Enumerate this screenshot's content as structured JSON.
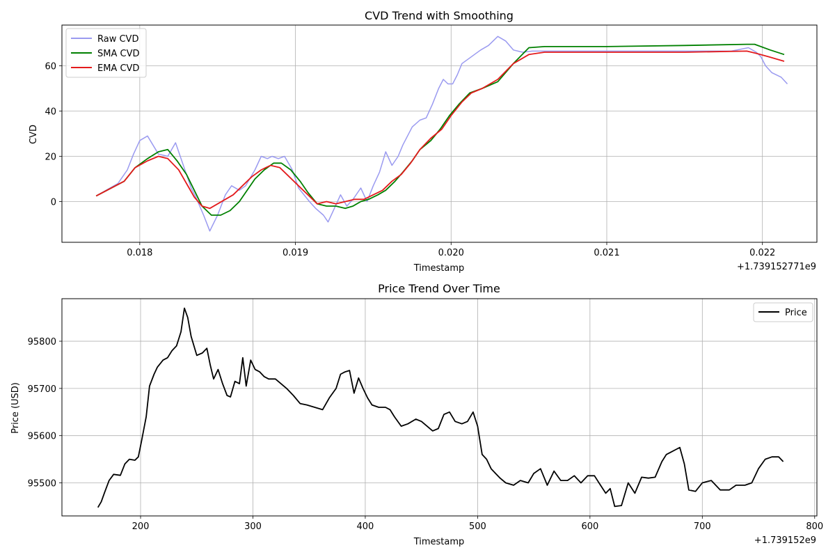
{
  "chart_data": [
    {
      "type": "line",
      "title": "CVD Trend with Smoothing",
      "xlabel": "Timestamp",
      "ylabel": "CVD",
      "x_offset_label": "+1.739152771e9",
      "xlim": [
        0.0175,
        0.02235
      ],
      "ylim": [
        -18,
        78
      ],
      "xticks": [
        0.018,
        0.019,
        0.02,
        0.021,
        0.022
      ],
      "xtick_labels": [
        "0.018",
        "0.019",
        "0.020",
        "0.021",
        "0.022"
      ],
      "yticks": [
        0,
        20,
        40,
        60
      ],
      "ytick_labels": [
        "0",
        "20",
        "40",
        "60"
      ],
      "grid": true,
      "legend": "top-left",
      "series": [
        {
          "name": "Raw CVD",
          "color": "#9a9af0",
          "x": [
            0.01772,
            0.01786,
            0.01792,
            0.01796,
            0.018,
            0.01805,
            0.01812,
            0.01818,
            0.01823,
            0.01828,
            0.01833,
            0.01836,
            0.01841,
            0.01845,
            0.0185,
            0.01855,
            0.01859,
            0.01864,
            0.01868,
            0.01874,
            0.01878,
            0.01882,
            0.01885,
            0.01889,
            0.01893,
            0.01898,
            0.01902,
            0.01909,
            0.01913,
            0.01918,
            0.01921,
            0.01925,
            0.01929,
            0.01933,
            0.01937,
            0.01942,
            0.01946,
            0.0195,
            0.01954,
            0.01958,
            0.01962,
            0.01966,
            0.01969,
            0.01975,
            0.0198,
            0.01984,
            0.01988,
            0.01992,
            0.01995,
            0.01998,
            0.02001,
            0.02004,
            0.02007,
            0.02011,
            0.02015,
            0.02019,
            0.02024,
            0.0203,
            0.02035,
            0.0204,
            0.02046,
            0.02052,
            0.0206,
            0.0208,
            0.021,
            0.0212,
            0.0215,
            0.0218,
            0.02191,
            0.02196,
            0.02199,
            0.02202,
            0.02206,
            0.02212,
            0.02216
          ],
          "y": [
            2.5,
            8,
            14,
            21,
            27,
            29,
            21,
            20,
            26,
            16,
            6,
            2,
            -6,
            -13,
            -6,
            3,
            7,
            5,
            7,
            14,
            20,
            19,
            20,
            19,
            20,
            14,
            6,
            0,
            -3,
            -6,
            -9,
            -3,
            3,
            -2,
            1,
            6,
            0,
            7,
            13,
            22,
            16,
            20,
            25,
            33,
            36,
            37,
            43,
            50,
            54,
            52,
            52,
            56,
            61,
            63,
            65,
            67,
            69,
            73,
            71,
            67,
            66,
            66.5,
            66.5,
            66.5,
            66.5,
            66.5,
            66.5,
            66.5,
            68,
            66,
            64,
            60,
            57,
            55,
            52
          ]
        },
        {
          "name": "SMA CVD",
          "color": "#008000",
          "x": [
            0.01772,
            0.0179,
            0.01797,
            0.01805,
            0.01812,
            0.01818,
            0.01824,
            0.0183,
            0.01835,
            0.0184,
            0.01846,
            0.01852,
            0.01858,
            0.01864,
            0.01869,
            0.01874,
            0.0188,
            0.01886,
            0.01891,
            0.01897,
            0.01903,
            0.01908,
            0.01914,
            0.0192,
            0.01926,
            0.01932,
            0.01937,
            0.01942,
            0.01947,
            0.01953,
            0.01958,
            0.01964,
            0.01969,
            0.01975,
            0.0198,
            0.01987,
            0.01993,
            0.01999,
            0.02005,
            0.02012,
            0.0202,
            0.0203,
            0.0204,
            0.0205,
            0.0206,
            0.0208,
            0.021,
            0.0215,
            0.0219,
            0.02195,
            0.02205,
            0.02214
          ],
          "y": [
            2.5,
            9,
            15,
            19,
            22,
            23,
            18,
            12,
            5,
            -2,
            -6,
            -6,
            -4,
            0,
            5,
            10,
            14,
            17,
            17,
            14,
            9,
            4,
            -1,
            -2,
            -2,
            -3,
            -2,
            0,
            1,
            3,
            5,
            9,
            13,
            18,
            23,
            27,
            32,
            38,
            43,
            48,
            50,
            53,
            61,
            68,
            68.5,
            68.5,
            68.5,
            69,
            69.5,
            69.5,
            67,
            65
          ]
        },
        {
          "name": "EMA CVD",
          "color": "#e31a1c",
          "x": [
            0.01772,
            0.0179,
            0.01797,
            0.01805,
            0.01812,
            0.01818,
            0.01825,
            0.0183,
            0.01835,
            0.0184,
            0.01845,
            0.0185,
            0.01855,
            0.0186,
            0.01866,
            0.01872,
            0.01878,
            0.01884,
            0.0189,
            0.01896,
            0.01902,
            0.01908,
            0.01914,
            0.0192,
            0.01926,
            0.01932,
            0.01938,
            0.01944,
            0.0195,
            0.01956,
            0.01962,
            0.01968,
            0.01974,
            0.0198,
            0.01987,
            0.01994,
            0.02,
            0.02007,
            0.02013,
            0.0202,
            0.0203,
            0.0204,
            0.0205,
            0.0206,
            0.021,
            0.0215,
            0.0219,
            0.02196,
            0.02204,
            0.02214
          ],
          "y": [
            2.5,
            9,
            15,
            18,
            20,
            19,
            14,
            8,
            2,
            -2,
            -3,
            -1,
            1,
            3,
            7,
            11,
            14,
            16,
            15,
            11,
            7,
            3,
            -1,
            0,
            -1,
            0,
            1,
            1,
            3,
            5,
            9,
            12,
            17,
            23,
            28,
            32,
            38,
            44,
            48,
            50,
            54,
            61,
            65,
            66,
            66,
            66,
            66.5,
            65.5,
            64,
            62
          ]
        }
      ]
    },
    {
      "type": "line",
      "title": "Price Trend Over Time",
      "xlabel": "Timestamp",
      "ylabel": "Price (USD)",
      "x_offset_label": "+1.739152e9",
      "xlim": [
        130,
        802
      ],
      "ylim": [
        95430,
        95890
      ],
      "xticks": [
        200,
        300,
        400,
        500,
        600,
        700,
        800
      ],
      "xtick_labels": [
        "200",
        "300",
        "400",
        "500",
        "600",
        "700",
        "800"
      ],
      "yticks": [
        95500,
        95600,
        95700,
        95800
      ],
      "ytick_labels": [
        "95500",
        "95600",
        "95700",
        "95800"
      ],
      "grid": true,
      "legend": "top-right",
      "series": [
        {
          "name": "Price",
          "color": "#000000",
          "x": [
            162,
            165,
            168,
            172,
            176,
            182,
            186,
            190,
            195,
            198,
            201,
            205,
            208,
            212,
            215,
            220,
            224,
            228,
            232,
            236,
            239,
            242,
            245,
            250,
            255,
            259,
            262,
            265,
            269,
            273,
            277,
            280,
            284,
            288,
            291,
            294,
            298,
            302,
            306,
            310,
            314,
            320,
            325,
            330,
            336,
            342,
            348,
            355,
            362,
            368,
            374,
            378,
            382,
            386,
            390,
            394,
            398,
            402,
            406,
            412,
            418,
            422,
            426,
            432,
            438,
            445,
            450,
            455,
            460,
            465,
            470,
            475,
            480,
            486,
            491,
            496,
            500,
            504,
            508,
            512,
            516,
            520,
            525,
            532,
            538,
            545,
            550,
            556,
            562,
            568,
            574,
            580,
            586,
            592,
            598,
            604,
            608,
            614,
            618,
            622,
            628,
            634,
            640,
            646,
            652,
            658,
            664,
            668,
            672,
            676,
            680,
            684,
            688,
            694,
            700,
            708,
            716,
            724,
            730,
            738,
            744,
            750,
            756,
            762,
            768,
            772
          ],
          "y": [
            95448,
            95460,
            95480,
            95505,
            95518,
            95516,
            95540,
            95550,
            95548,
            95555,
            95590,
            95640,
            95705,
            95730,
            95745,
            95760,
            95765,
            95780,
            95790,
            95820,
            95870,
            95850,
            95810,
            95770,
            95775,
            95785,
            95750,
            95720,
            95740,
            95710,
            95685,
            95682,
            95715,
            95710,
            95765,
            95705,
            95760,
            95740,
            95735,
            95725,
            95720,
            95720,
            95710,
            95700,
            95685,
            95668,
            95665,
            95660,
            95655,
            95680,
            95700,
            95730,
            95735,
            95738,
            95690,
            95722,
            95700,
            95680,
            95665,
            95660,
            95660,
            95655,
            95640,
            95620,
            95625,
            95635,
            95630,
            95620,
            95610,
            95615,
            95645,
            95650,
            95630,
            95625,
            95630,
            95650,
            95620,
            95560,
            95550,
            95530,
            95520,
            95510,
            95500,
            95495,
            95505,
            95500,
            95520,
            95530,
            95495,
            95525,
            95505,
            95505,
            95515,
            95500,
            95515,
            95515,
            95500,
            95478,
            95488,
            95450,
            95452,
            95500,
            95478,
            95512,
            95510,
            95512,
            95545,
            95560,
            95565,
            95570,
            95575,
            95540,
            95485,
            95482,
            95500,
            95505,
            95485,
            95485,
            95495,
            95495,
            95500,
            95530,
            95550,
            95555,
            95555,
            95545
          ]
        }
      ]
    }
  ]
}
